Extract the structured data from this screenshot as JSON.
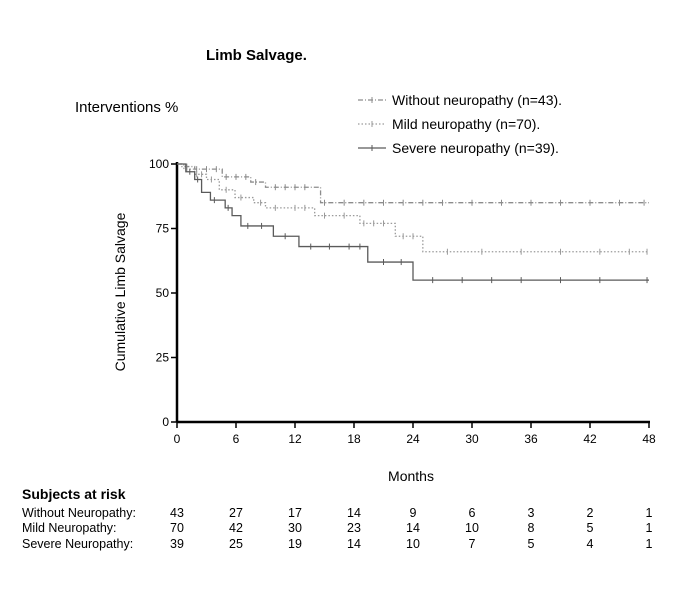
{
  "chart_data": {
    "type": "line",
    "title": "Limb Salvage.",
    "subtitle": "Interventions %",
    "xlabel": "Months",
    "ylabel": "Cumulative Limb Salvage",
    "xlim": [
      0,
      48
    ],
    "ylim": [
      0,
      100
    ],
    "xticks": [
      "0",
      "6",
      "12",
      "18",
      "24",
      "30",
      "36",
      "42",
      "48"
    ],
    "yticks": [
      "0",
      "25",
      "50",
      "75",
      "100"
    ],
    "legend_position": "top-right",
    "series": [
      {
        "name": "Without neuropathy (n=43).",
        "style": "dash-dot",
        "color": "#8c8c8c",
        "steps": [
          [
            0,
            100
          ],
          [
            0.5,
            99
          ],
          [
            1.8,
            98
          ],
          [
            4.6,
            95
          ],
          [
            7.5,
            93
          ],
          [
            9.0,
            91
          ],
          [
            14.6,
            85
          ],
          [
            48,
            85
          ]
        ],
        "censor_x": [
          1,
          2,
          3,
          4,
          5,
          6,
          7,
          8,
          10,
          11,
          12,
          13,
          15,
          17,
          19,
          21,
          23,
          25,
          27,
          30,
          33,
          36,
          39,
          42,
          45,
          47.5
        ]
      },
      {
        "name": "Mild neuropathy (n=70).",
        "style": "dotted",
        "color": "#9a9a9a",
        "steps": [
          [
            0,
            100
          ],
          [
            0.7,
            98
          ],
          [
            1.8,
            96
          ],
          [
            3.0,
            94
          ],
          [
            4.3,
            90
          ],
          [
            5.9,
            87
          ],
          [
            7.8,
            85
          ],
          [
            9.0,
            83
          ],
          [
            14.0,
            80
          ],
          [
            18.6,
            77
          ],
          [
            22.2,
            72
          ],
          [
            25.0,
            66
          ],
          [
            48,
            66
          ]
        ],
        "censor_x": [
          1,
          2,
          2.5,
          3.5,
          5,
          6.5,
          8.5,
          10,
          12,
          13,
          15,
          17,
          19,
          20,
          21,
          23,
          24,
          27.5,
          31,
          35,
          39,
          43,
          46,
          47.8
        ]
      },
      {
        "name": "Severe neuropathy (n=39).",
        "style": "solid",
        "color": "#5a5a5a",
        "steps": [
          [
            0,
            100
          ],
          [
            0.9,
            97
          ],
          [
            1.8,
            94
          ],
          [
            2.5,
            89
          ],
          [
            3.4,
            86
          ],
          [
            4.9,
            83
          ],
          [
            5.6,
            80
          ],
          [
            6.5,
            76
          ],
          [
            9.8,
            72
          ],
          [
            12.4,
            68
          ],
          [
            19.4,
            62
          ],
          [
            24.0,
            55
          ],
          [
            48,
            55
          ]
        ],
        "censor_x": [
          1.3,
          2.1,
          3.8,
          5.2,
          7.2,
          8.6,
          11,
          13.6,
          15.5,
          17.5,
          18.6,
          21,
          22.8,
          26,
          29,
          32,
          35,
          39,
          43,
          47.8
        ]
      }
    ]
  },
  "risk_table": {
    "header": "Subjects at risk",
    "rows": [
      {
        "label": "Without Neuropathy:",
        "values": [
          "43",
          "27",
          "17",
          "14",
          "9",
          "6",
          "3",
          "2",
          "1"
        ]
      },
      {
        "label": "Mild Neuropathy:",
        "values": [
          "70",
          "42",
          "30",
          "23",
          "14",
          "10",
          "8",
          "5",
          "1"
        ]
      },
      {
        "label": "Severe Neuropathy:",
        "values": [
          "39",
          "25",
          "19",
          "14",
          "10",
          "7",
          "5",
          "4",
          "1"
        ]
      }
    ]
  }
}
